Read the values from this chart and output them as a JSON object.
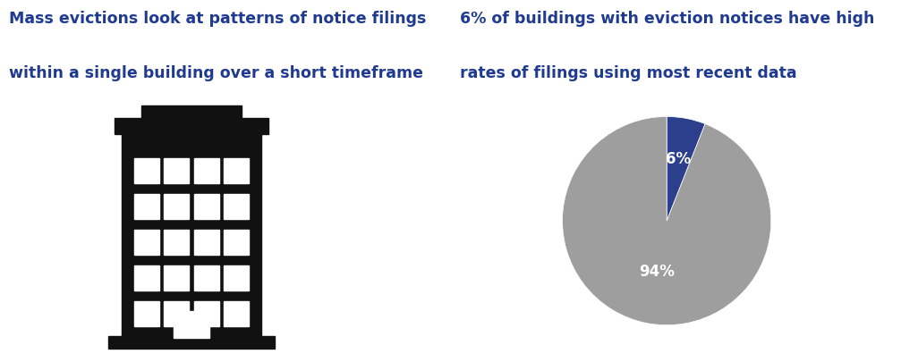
{
  "left_title_line1": "Mass evictions look at patterns of notice filings",
  "left_title_line2": "within a single building over a short timeframe",
  "right_title_line1": "6% of buildings with eviction notices have high",
  "right_title_line2": "rates of filings using most recent data",
  "title_color": "#1F3A8F",
  "title_fontsize": 12.5,
  "pie_values": [
    6,
    94
  ],
  "pie_labels": [
    "6%",
    "94%"
  ],
  "pie_colors": [
    "#2B3F8C",
    "#9E9E9E"
  ],
  "pie_label_colors": [
    "white",
    "white"
  ],
  "pie_label_fontsize": 12,
  "background_color": "#ffffff",
  "building_color": "#111111"
}
